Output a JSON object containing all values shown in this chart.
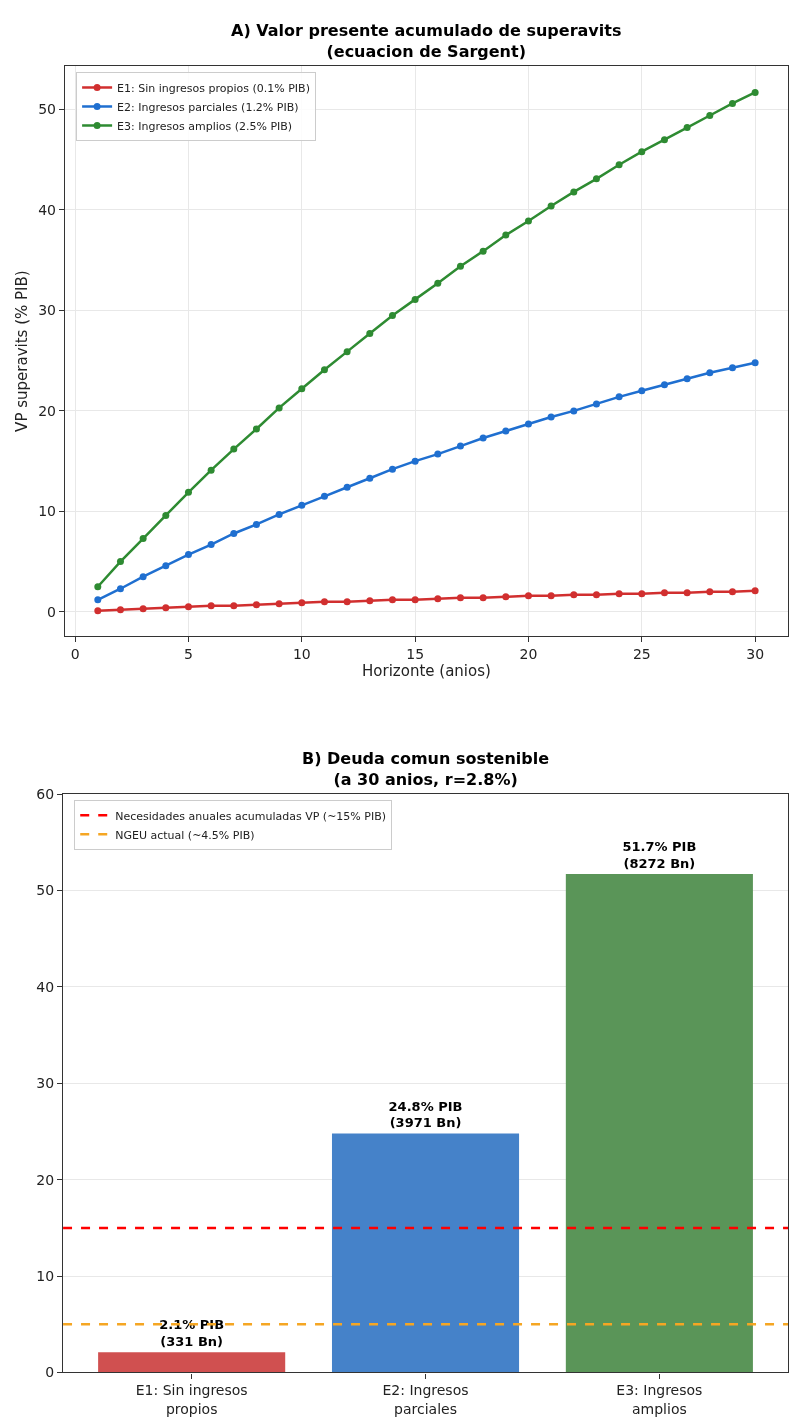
{
  "chart_data": [
    {
      "type": "line",
      "title": "A) Valor presente acumulado de superavits\n(ecuacion de Sargent)",
      "xlabel": "Horizonte (anios)",
      "ylabel": "VP superavits (% PIB)",
      "x": [
        1,
        2,
        3,
        4,
        5,
        6,
        7,
        8,
        9,
        10,
        11,
        12,
        13,
        14,
        15,
        16,
        17,
        18,
        19,
        20,
        21,
        22,
        23,
        24,
        25,
        26,
        27,
        28,
        29,
        30
      ],
      "series": [
        {
          "name": "E1: Sin ingresos propios (0.1% PIB)",
          "color": "#d12f2f",
          "values": [
            0.1,
            0.2,
            0.3,
            0.4,
            0.5,
            0.6,
            0.6,
            0.7,
            0.8,
            0.9,
            1.0,
            1.0,
            1.1,
            1.2,
            1.2,
            1.3,
            1.4,
            1.4,
            1.5,
            1.6,
            1.6,
            1.7,
            1.7,
            1.8,
            1.8,
            1.9,
            1.9,
            2.0,
            2.0,
            2.1
          ]
        },
        {
          "name": "E2: Ingresos parciales (1.2% PIB)",
          "color": "#1f6fd0",
          "values": [
            1.2,
            2.3,
            3.5,
            4.6,
            5.7,
            6.7,
            7.8,
            8.7,
            9.7,
            10.6,
            11.5,
            12.4,
            13.3,
            14.2,
            15.0,
            15.7,
            16.5,
            17.3,
            18.0,
            18.7,
            19.4,
            20.0,
            20.7,
            21.4,
            22.0,
            22.6,
            23.2,
            23.8,
            24.3,
            24.8
          ]
        },
        {
          "name": "E3: Ingresos amplios (2.5% PIB)",
          "color": "#2e8b32",
          "values": [
            2.5,
            5.0,
            7.3,
            9.6,
            11.9,
            14.1,
            16.2,
            18.2,
            20.3,
            22.2,
            24.1,
            25.9,
            27.7,
            29.5,
            31.1,
            32.7,
            34.4,
            35.9,
            37.5,
            38.9,
            40.4,
            41.8,
            43.1,
            44.5,
            45.8,
            47.0,
            48.2,
            49.4,
            50.6,
            51.7
          ]
        }
      ],
      "xlim": [
        -0.45,
        31.45
      ],
      "xticks": [
        0,
        5,
        10,
        15,
        20,
        25,
        30
      ],
      "ylim": [
        -2.4,
        54.3
      ],
      "yticks": [
        0,
        10,
        20,
        30,
        40,
        50
      ],
      "marker": "circle",
      "line_style": "solid",
      "grid": true,
      "legend": "top left"
    },
    {
      "type": "bar",
      "title": "B) Deuda comun sostenible\n(a 30 anios, r=2.8%)",
      "categories": [
        "E1: Sin ingresos propios",
        "E2: Ingresos parciales",
        "E3: Ingresos amplios"
      ],
      "values": [
        2.1,
        24.8,
        51.7
      ],
      "colors": [
        "#d05050",
        "#4582c9",
        "#5a9558"
      ],
      "value_labels": [
        "2.1% PIB\n(331 Bn)",
        "24.8% PIB\n(3971 Bn)",
        "51.7% PIB\n(8272 Bn)"
      ],
      "ylim": [
        0,
        60
      ],
      "yticks": [
        0,
        10,
        20,
        30,
        40,
        50,
        60
      ],
      "ref_lines": [
        {
          "axis": "y",
          "value": 15,
          "label": "Necesidades anuales acumuladas VP (~15% PIB)",
          "color": "#ff0000",
          "line_style": "dashed"
        },
        {
          "axis": "y",
          "value": 5,
          "label": "NGEU actual (~4.5% PIB)",
          "color": "#f5a623",
          "line_style": "dashed"
        }
      ],
      "grid": "y",
      "legend": "top left"
    }
  ]
}
